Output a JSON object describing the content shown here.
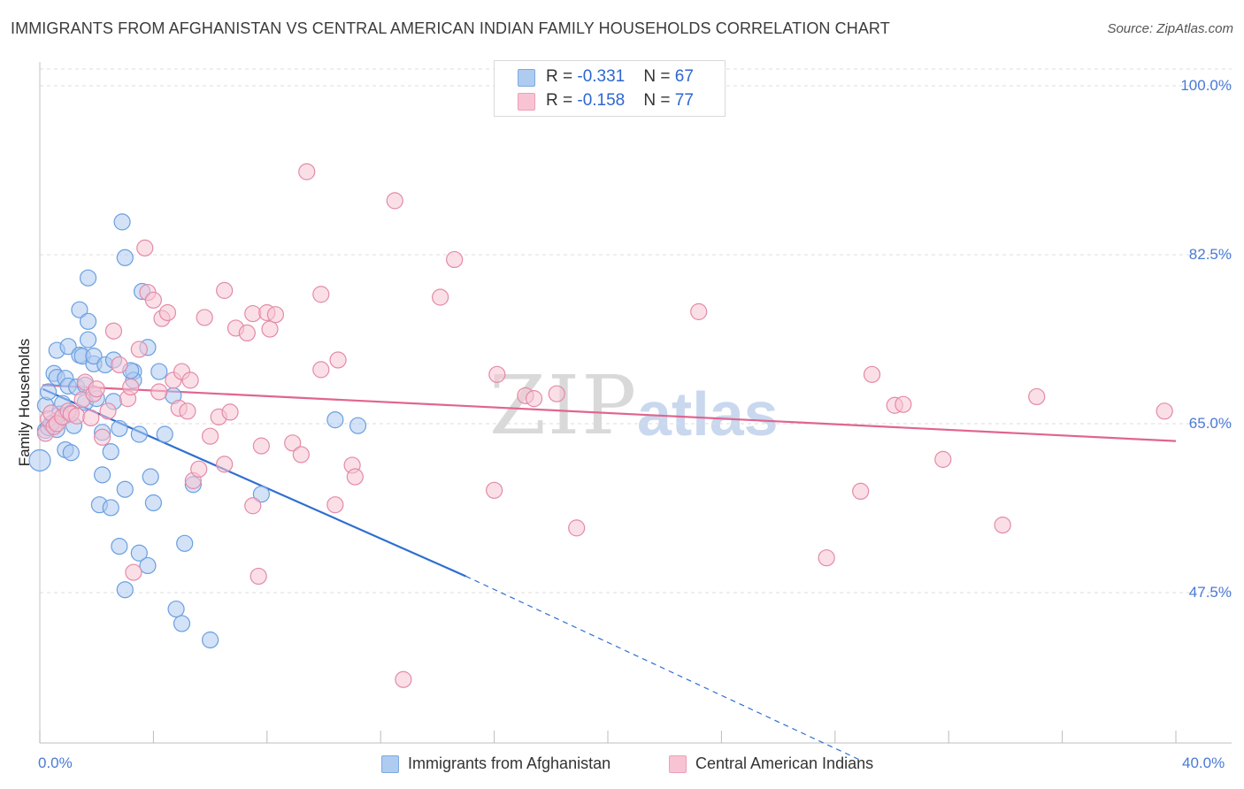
{
  "title": "IMMIGRANTS FROM AFGHANISTAN VS CENTRAL AMERICAN INDIAN FAMILY HOUSEHOLDS CORRELATION CHART",
  "source": "Source: ZipAtlas.com",
  "watermark": {
    "zip": "ZIP",
    "atlas": "atlas"
  },
  "legend": {
    "rows": [
      {
        "r_label": "R = ",
        "r_value": "-0.331",
        "n_label": "N = ",
        "n_value": "67",
        "color": "#aecbf0"
      },
      {
        "r_label": "R = ",
        "r_value": "-0.158",
        "n_label": "N = ",
        "n_value": "77",
        "color": "#f8c4d4"
      }
    ]
  },
  "chart_data": {
    "type": "scatter",
    "ylabel": "Family Households",
    "xlabel": "",
    "xlim": [
      0,
      40
    ],
    "ylim": [
      30,
      102
    ],
    "x_tick_labels": [
      "0.0%",
      "40.0%"
    ],
    "y_ticks": [
      {
        "value": 100,
        "label": "100.0%"
      },
      {
        "value": 82.5,
        "label": "82.5%"
      },
      {
        "value": 65,
        "label": "65.0%"
      },
      {
        "value": 47.5,
        "label": "47.5%"
      }
    ],
    "series": [
      {
        "name": "Immigrants from Afghanistan",
        "color": "#6a9fe0",
        "fill": "#aecbf0",
        "trend": {
          "x0": 0.1,
          "y0": 68.6,
          "x1": 15.0,
          "y1": 49.2,
          "dash_to_x": 29.0,
          "dash_to_y": 30.0,
          "color": "#2f6fd0"
        },
        "points": [
          [
            0.0,
            61.2
          ],
          [
            0.2,
            64.3
          ],
          [
            0.2,
            66.9
          ],
          [
            0.3,
            68.3
          ],
          [
            0.3,
            64.6
          ],
          [
            0.5,
            70.2
          ],
          [
            0.5,
            65.2
          ],
          [
            0.6,
            72.6
          ],
          [
            0.6,
            69.8
          ],
          [
            0.7,
            66.0
          ],
          [
            0.8,
            67.1
          ],
          [
            0.9,
            69.7
          ],
          [
            0.9,
            62.3
          ],
          [
            1.0,
            73.0
          ],
          [
            1.0,
            68.9
          ],
          [
            1.1,
            62.0
          ],
          [
            1.2,
            64.8
          ],
          [
            1.3,
            68.8
          ],
          [
            1.4,
            76.8
          ],
          [
            1.4,
            72.1
          ],
          [
            1.5,
            72.0
          ],
          [
            1.6,
            67.2
          ],
          [
            1.6,
            69.0
          ],
          [
            1.7,
            73.7
          ],
          [
            1.7,
            75.6
          ],
          [
            1.7,
            80.1
          ],
          [
            1.9,
            71.2
          ],
          [
            1.9,
            72.0
          ],
          [
            2.0,
            67.6
          ],
          [
            2.1,
            56.6
          ],
          [
            2.2,
            64.1
          ],
          [
            2.2,
            59.7
          ],
          [
            2.3,
            71.1
          ],
          [
            2.5,
            62.1
          ],
          [
            2.5,
            56.3
          ],
          [
            2.6,
            67.3
          ],
          [
            2.8,
            52.3
          ],
          [
            2.8,
            64.5
          ],
          [
            2.9,
            85.9
          ],
          [
            3.0,
            58.2
          ],
          [
            3.0,
            47.8
          ],
          [
            3.0,
            82.2
          ],
          [
            3.3,
            70.4
          ],
          [
            3.3,
            69.5
          ],
          [
            3.5,
            51.6
          ],
          [
            3.5,
            63.9
          ],
          [
            3.6,
            78.7
          ],
          [
            3.8,
            50.3
          ],
          [
            3.8,
            72.9
          ],
          [
            3.9,
            59.5
          ],
          [
            4.0,
            56.8
          ],
          [
            4.2,
            70.4
          ],
          [
            4.4,
            63.9
          ],
          [
            4.7,
            67.9
          ],
          [
            4.8,
            45.8
          ],
          [
            5.0,
            44.3
          ],
          [
            5.1,
            52.6
          ],
          [
            5.4,
            58.7
          ],
          [
            6.0,
            42.6
          ],
          [
            7.8,
            57.7
          ],
          [
            10.4,
            65.4
          ],
          [
            11.2,
            64.8
          ],
          [
            0.6,
            64.4
          ],
          [
            1.1,
            66.1
          ],
          [
            2.6,
            71.6
          ],
          [
            3.2,
            70.5
          ],
          [
            0.4,
            65.0
          ]
        ]
      },
      {
        "name": "Central American Indians",
        "color": "#e38aa8",
        "fill": "#f8c4d4",
        "trend": {
          "x0": 0.1,
          "y0": 69.0,
          "x1": 40.0,
          "y1": 63.2,
          "color": "#e0658f"
        },
        "points": [
          [
            0.2,
            64.0
          ],
          [
            0.3,
            65.5
          ],
          [
            0.4,
            66.1
          ],
          [
            0.5,
            64.7
          ],
          [
            0.6,
            65.0
          ],
          [
            0.8,
            65.7
          ],
          [
            1.0,
            66.3
          ],
          [
            1.1,
            66.0
          ],
          [
            1.3,
            65.8
          ],
          [
            1.5,
            67.5
          ],
          [
            1.6,
            69.3
          ],
          [
            1.8,
            65.6
          ],
          [
            1.9,
            68.1
          ],
          [
            2.0,
            68.6
          ],
          [
            2.2,
            63.6
          ],
          [
            2.4,
            66.3
          ],
          [
            2.6,
            74.6
          ],
          [
            2.8,
            71.1
          ],
          [
            3.1,
            67.6
          ],
          [
            3.2,
            68.8
          ],
          [
            3.3,
            49.6
          ],
          [
            3.5,
            72.7
          ],
          [
            3.7,
            83.2
          ],
          [
            3.8,
            78.6
          ],
          [
            4.0,
            77.8
          ],
          [
            4.2,
            68.3
          ],
          [
            4.3,
            75.9
          ],
          [
            4.5,
            76.5
          ],
          [
            4.7,
            69.5
          ],
          [
            4.9,
            66.6
          ],
          [
            5.0,
            70.4
          ],
          [
            5.3,
            69.5
          ],
          [
            5.2,
            66.3
          ],
          [
            5.4,
            59.1
          ],
          [
            5.6,
            60.3
          ],
          [
            5.8,
            76.0
          ],
          [
            6.0,
            63.7
          ],
          [
            6.3,
            65.7
          ],
          [
            6.5,
            60.8
          ],
          [
            6.5,
            78.8
          ],
          [
            6.7,
            66.2
          ],
          [
            6.9,
            74.9
          ],
          [
            7.3,
            74.4
          ],
          [
            7.5,
            56.5
          ],
          [
            7.5,
            76.4
          ],
          [
            7.7,
            49.2
          ],
          [
            7.8,
            62.7
          ],
          [
            8.0,
            76.5
          ],
          [
            8.1,
            74.8
          ],
          [
            8.3,
            76.3
          ],
          [
            8.9,
            63.0
          ],
          [
            9.2,
            61.8
          ],
          [
            9.4,
            91.1
          ],
          [
            9.9,
            78.4
          ],
          [
            9.9,
            70.6
          ],
          [
            10.4,
            56.6
          ],
          [
            10.5,
            71.6
          ],
          [
            11.0,
            60.7
          ],
          [
            11.1,
            59.5
          ],
          [
            12.5,
            88.1
          ],
          [
            12.8,
            38.5
          ],
          [
            14.6,
            82.0
          ],
          [
            14.1,
            78.1
          ],
          [
            16.0,
            58.1
          ],
          [
            16.1,
            70.1
          ],
          [
            17.1,
            67.9
          ],
          [
            17.4,
            67.6
          ],
          [
            18.2,
            68.1
          ],
          [
            18.9,
            54.2
          ],
          [
            23.2,
            76.6
          ],
          [
            27.7,
            51.1
          ],
          [
            28.9,
            58.0
          ],
          [
            29.3,
            70.1
          ],
          [
            30.1,
            66.9
          ],
          [
            30.4,
            67.0
          ],
          [
            31.8,
            61.3
          ],
          [
            33.9,
            54.5
          ],
          [
            35.1,
            67.8
          ],
          [
            39.6,
            66.3
          ]
        ]
      }
    ]
  },
  "bottom_legend": [
    {
      "label": "Immigrants from Afghanistan",
      "color": "#aecbf0"
    },
    {
      "label": "Central American Indians",
      "color": "#f8c4d4"
    }
  ]
}
